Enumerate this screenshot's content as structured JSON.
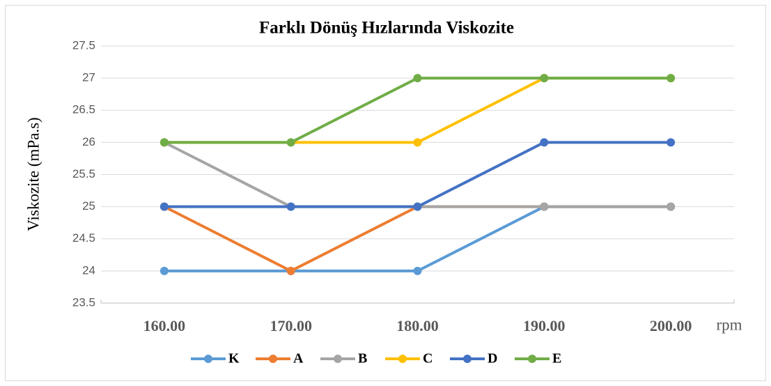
{
  "chart_data": {
    "type": "line",
    "title": "Farklı Dönüş Hızlarında Viskozite",
    "y_label": "Viskozite (mPa.s)",
    "x_unit": "rpm",
    "categories": [
      "160.00",
      "170.00",
      "180.00",
      "190.00",
      "200.00"
    ],
    "series": [
      {
        "name": "K",
        "color": "#5b9bd5",
        "values": [
          24,
          24,
          24,
          25,
          25
        ]
      },
      {
        "name": "A",
        "color": "#ed7d31",
        "values": [
          25,
          24,
          25,
          25,
          25
        ]
      },
      {
        "name": "B",
        "color": "#a5a5a5",
        "values": [
          26,
          25,
          25,
          25,
          25
        ]
      },
      {
        "name": "C",
        "color": "#ffc000",
        "values": [
          26,
          26,
          26,
          27,
          27
        ]
      },
      {
        "name": "D",
        "color": "#4472c4",
        "values": [
          25,
          25,
          25,
          26,
          26
        ]
      },
      {
        "name": "E",
        "color": "#70ad47",
        "values": [
          26,
          26,
          27,
          27,
          27
        ]
      }
    ],
    "ylim": [
      23.5,
      27.5
    ],
    "yticks": [
      23.5,
      24,
      24.5,
      25,
      25.5,
      26,
      26.5,
      27,
      27.5
    ],
    "grid": true
  }
}
